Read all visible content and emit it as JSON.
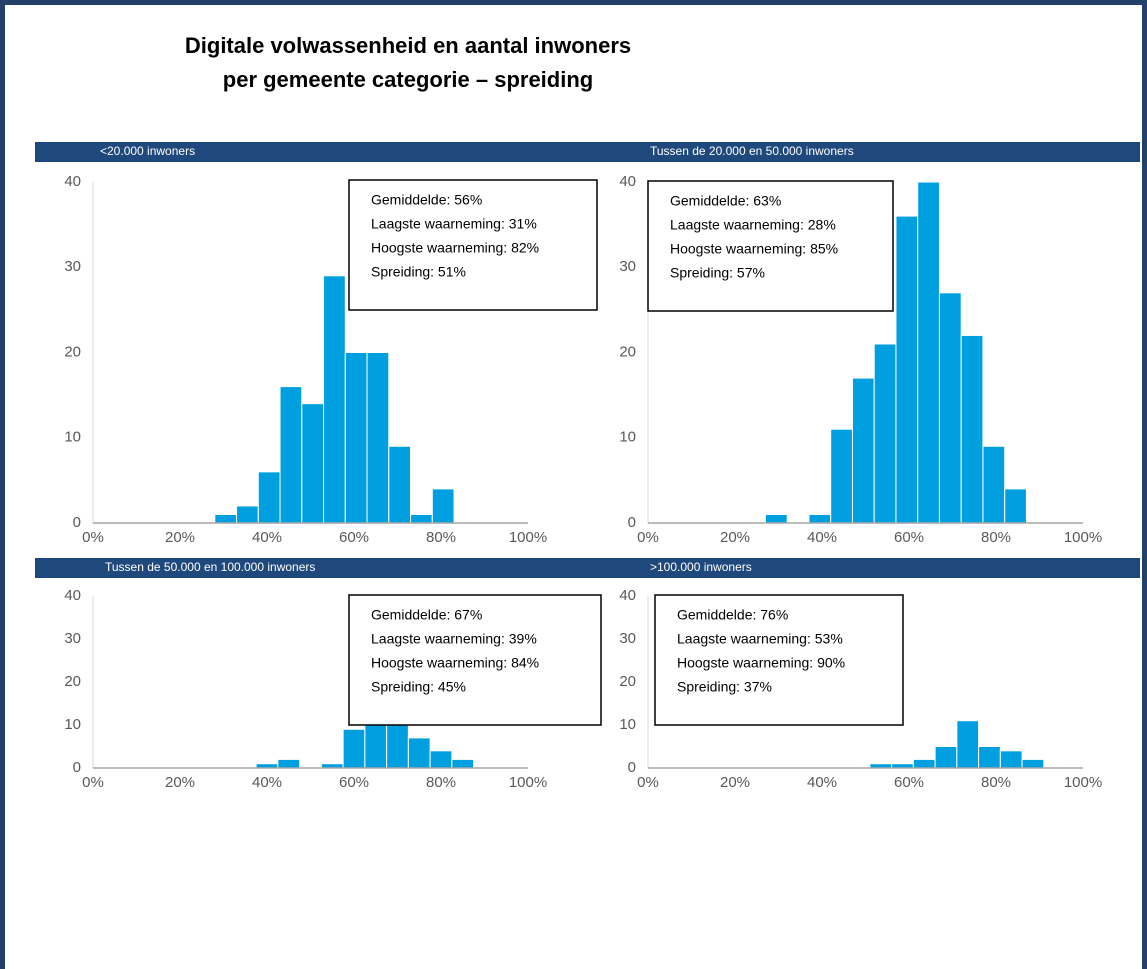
{
  "title": [
    "Digitale volwassenheid en aantal inwoners",
    "per gemeente categorie – spreiding"
  ],
  "chart_data": [
    {
      "type": "histogram",
      "title": "<20.000 inwoners",
      "color": "#00a0e0",
      "bins": [
        28,
        33,
        38,
        43,
        48,
        53,
        58,
        63,
        68,
        73,
        78,
        83
      ],
      "values": [
        1,
        2,
        6,
        16,
        14,
        29,
        20,
        20,
        9,
        1,
        4
      ],
      "xlim": [
        0,
        100
      ],
      "xticks": [
        {
          "value": 0,
          "label": "0%"
        },
        {
          "value": 20,
          "label": "20%"
        },
        {
          "value": 40,
          "label": "40%"
        },
        {
          "value": 60,
          "label": "60%"
        },
        {
          "value": 80,
          "label": "80%"
        },
        {
          "value": 100,
          "label": "100%"
        }
      ],
      "ylim": [
        0,
        40
      ],
      "yticks": [
        0,
        10,
        20,
        30,
        40
      ],
      "annotations": [
        "Gemiddelde: 56%",
        "Laagste waarneming: 31%",
        "Hoogste waarneming: 82%",
        "Spreiding: 51%"
      ]
    },
    {
      "type": "histogram",
      "title": "Tussen de 20.000 en 50.000 inwoners",
      "color": "#00a0e0",
      "bins": [
        27,
        32,
        37,
        42,
        47,
        52,
        57,
        62,
        67,
        72,
        77,
        82,
        87
      ],
      "values": [
        1,
        0,
        1,
        11,
        17,
        21,
        36,
        40,
        27,
        22,
        9,
        4
      ],
      "xlim": [
        0,
        100
      ],
      "xticks": [
        {
          "value": 0,
          "label": "0%"
        },
        {
          "value": 20,
          "label": "20%"
        },
        {
          "value": 40,
          "label": "40%"
        },
        {
          "value": 60,
          "label": "60%"
        },
        {
          "value": 80,
          "label": "80%"
        },
        {
          "value": 100,
          "label": "100%"
        }
      ],
      "ylim": [
        0,
        40
      ],
      "yticks": [
        0,
        10,
        20,
        30,
        40
      ],
      "annotations": [
        "Gemiddelde: 63%",
        "Laagste waarneming: 28%",
        "Hoogste waarneming: 85%",
        "Spreiding: 57%"
      ]
    },
    {
      "type": "histogram",
      "title": "Tussen de 50.000 en 100.000 inwoners",
      "color": "#00a0e0",
      "bins": [
        37.5,
        42.5,
        47.5,
        52.5,
        57.5,
        62.5,
        67.5,
        72.5,
        77.5,
        82.5,
        87.5
      ],
      "values": [
        1,
        2,
        0,
        1,
        9,
        10,
        10,
        7,
        4,
        2
      ],
      "xlim": [
        0,
        100
      ],
      "xticks": [
        {
          "value": 0,
          "label": "0%"
        },
        {
          "value": 20,
          "label": "20%"
        },
        {
          "value": 40,
          "label": "40%"
        },
        {
          "value": 60,
          "label": "60%"
        },
        {
          "value": 80,
          "label": "80%"
        },
        {
          "value": 100,
          "label": "100%"
        }
      ],
      "ylim": [
        0,
        40
      ],
      "yticks": [
        0,
        10,
        20,
        30,
        40
      ],
      "annotations": [
        "Gemiddelde: 67%",
        "Laagste waarneming: 39%",
        "Hoogste waarneming: 84%",
        "Spreiding: 45%"
      ]
    },
    {
      "type": "histogram",
      "title": ">100.000 inwoners",
      "color": "#00a0e0",
      "bins": [
        51,
        56,
        61,
        66,
        71,
        76,
        81,
        86,
        91
      ],
      "values": [
        1,
        1,
        2,
        5,
        11,
        5,
        4,
        2
      ],
      "xlim": [
        0,
        100
      ],
      "xticks": [
        {
          "value": 0,
          "label": "0%"
        },
        {
          "value": 20,
          "label": "20%"
        },
        {
          "value": 40,
          "label": "40%"
        },
        {
          "value": 60,
          "label": "60%"
        },
        {
          "value": 80,
          "label": "80%"
        },
        {
          "value": 100,
          "label": "100%"
        }
      ],
      "ylim": [
        0,
        40
      ],
      "yticks": [
        0,
        10,
        20,
        30,
        40
      ],
      "annotations": [
        "Gemiddelde: 76%",
        "Laagste waarneming: 53%",
        "Hoogste waarneming: 90%",
        "Spreiding: 37%"
      ]
    }
  ]
}
